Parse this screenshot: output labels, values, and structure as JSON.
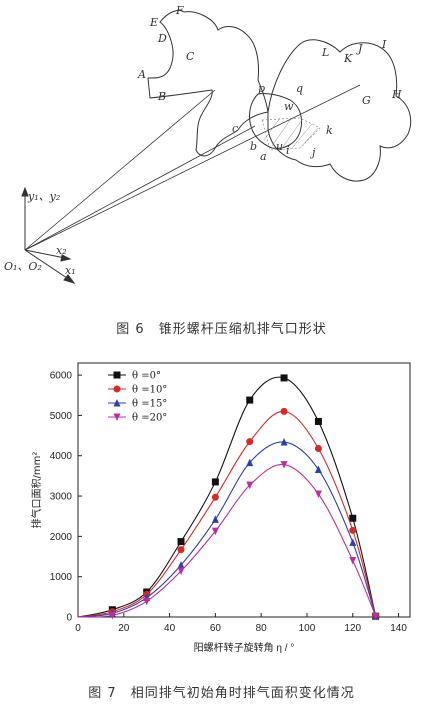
{
  "figure6": {
    "caption": "图 6　锥形螺杆压缩机排气口形状",
    "point_labels": [
      "A",
      "B",
      "C",
      "D",
      "E",
      "F",
      "L",
      "K",
      "J",
      "I",
      "H",
      "G",
      "p",
      "q",
      "w",
      "c",
      "b",
      "a",
      "u",
      "i",
      "j",
      "k"
    ],
    "axis_labels": {
      "y": "y₁、y₂",
      "x1": "x₁",
      "x2": "x₂",
      "origin": "O₁、O₂"
    }
  },
  "figure7": {
    "caption": "图 7　相同排气初始角时排气面积变化情况"
  },
  "chart_data": {
    "type": "line",
    "xlabel": "阳螺杆转子旋转角 η / °",
    "ylabel": "排气口面积/mm²",
    "xlim": [
      0,
      145
    ],
    "ylim": [
      0,
      6300
    ],
    "xticks": [
      "0",
      "20",
      "40",
      "60",
      "80",
      "100",
      "120",
      "140"
    ],
    "yticks": [
      "0",
      "1000",
      "2000",
      "3000",
      "4000",
      "5000",
      "6000"
    ],
    "legend_position": "top-left",
    "series": [
      {
        "name": "θ =0°",
        "color": "#111111",
        "marker": "square",
        "x": [
          15,
          30,
          45,
          60,
          75,
          90,
          105,
          120,
          130
        ],
        "values": [
          180,
          620,
          1870,
          3350,
          5380,
          5930,
          4850,
          2450,
          20
        ]
      },
      {
        "name": "θ =10°",
        "color": "#d62a2a",
        "marker": "circle",
        "x": [
          15,
          30,
          45,
          60,
          75,
          90,
          105,
          120,
          130
        ],
        "values": [
          130,
          560,
          1670,
          2970,
          4350,
          5100,
          4180,
          2150,
          20
        ]
      },
      {
        "name": "θ =15°",
        "color": "#2b3fa8",
        "marker": "triangle-up",
        "x": [
          15,
          30,
          45,
          60,
          75,
          90,
          105,
          120,
          130
        ],
        "values": [
          90,
          480,
          1290,
          2420,
          3830,
          4340,
          3660,
          1850,
          20
        ]
      },
      {
        "name": "θ =20°",
        "color": "#b8309f",
        "marker": "triangle-down",
        "x": [
          15,
          30,
          45,
          60,
          75,
          90,
          105,
          120,
          130
        ],
        "values": [
          40,
          390,
          1140,
          2130,
          3270,
          3780,
          3050,
          1400,
          20
        ]
      }
    ]
  }
}
